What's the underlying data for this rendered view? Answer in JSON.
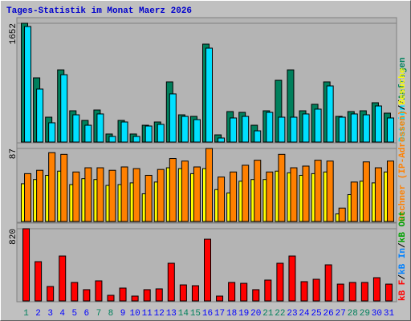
{
  "title": "Tages-Statistik im Monat Maerz 2026",
  "legend_separator": "/",
  "chart_data": [
    {
      "type": "bar",
      "ylim": [
        0,
        1652
      ],
      "yticks": [
        1652
      ],
      "series": [
        {
          "name": "Anfragen",
          "color": "#00805c",
          "values": [
            1652,
            893,
            346,
            1004,
            435,
            301,
            446,
            112,
            301,
            112,
            234,
            279,
            837,
            379,
            357,
            1362,
            100,
            424,
            413,
            234,
            435,
            859,
            1004,
            435,
            525,
            837,
            357,
            424,
            435,
            547,
            402
          ]
        },
        {
          "name": "Dateien",
          "color": "#00e0ff",
          "values": [
            1607,
            737,
            268,
            937,
            379,
            234,
            391,
            78,
            279,
            78,
            223,
            246,
            670,
            357,
            312,
            1306,
            56,
            335,
            357,
            156,
            413,
            346,
            346,
            391,
            458,
            781,
            346,
            391,
            379,
            502,
            335
          ]
        }
      ]
    },
    {
      "type": "bar",
      "ylim": [
        0,
        87
      ],
      "yticks": [
        87
      ],
      "series": [
        {
          "name": "Besuche",
          "color": "#ffff00",
          "values": [
            45,
            50,
            55,
            60,
            44,
            51,
            50,
            43,
            44,
            46,
            33,
            47,
            64,
            63,
            57,
            63,
            38,
            34,
            48,
            50,
            50,
            60,
            58,
            55,
            57,
            59,
            9,
            32,
            48,
            46,
            59
          ]
        },
        {
          "name": "Rechner (IP-Adressen)",
          "color": "#ff8000",
          "values": [
            57,
            61,
            82,
            80,
            59,
            64,
            64,
            61,
            65,
            63,
            55,
            62,
            75,
            72,
            65,
            87,
            53,
            59,
            67,
            73,
            59,
            80,
            64,
            66,
            73,
            72,
            16,
            47,
            71,
            64,
            72
          ]
        }
      ]
    },
    {
      "type": "bar",
      "ylim": [
        0,
        820
      ],
      "yticks": [
        820
      ],
      "categories": [
        "1",
        "2",
        "3",
        "4",
        "5",
        "6",
        "7",
        "8",
        "9",
        "10",
        "11",
        "12",
        "13",
        "14",
        "15",
        "16",
        "17",
        "18",
        "19",
        "20",
        "21",
        "22",
        "23",
        "24",
        "25",
        "26",
        "27",
        "28",
        "29",
        "30",
        "31"
      ],
      "category_colors": [
        "#00805c",
        "#0000ff",
        "#0000ff",
        "#0000ff",
        "#0000ff",
        "#0000ff",
        "#00805c",
        "#00805c",
        "#0000ff",
        "#0000ff",
        "#0000ff",
        "#0000ff",
        "#0000ff",
        "#00805c",
        "#00805c",
        "#0000ff",
        "#0000ff",
        "#0000ff",
        "#0000ff",
        "#0000ff",
        "#00805c",
        "#00805c",
        "#0000ff",
        "#0000ff",
        "#0000ff",
        "#0000ff",
        "#0000ff",
        "#00805c",
        "#00805c",
        "#0000ff",
        "#0000ff"
      ],
      "series": [
        {
          "name": "kB F",
          "color": "#ff0000",
          "values": [
            820,
            446,
            164,
            510,
            210,
            128,
            228,
            64,
            146,
            55,
            128,
            137,
            428,
            182,
            173,
            701,
            55,
            210,
            200,
            128,
            237,
            428,
            510,
            219,
            246,
            410,
            191,
            210,
            210,
            264,
            191
          ]
        }
      ],
      "legend_only": [
        {
          "name": "kB Out",
          "color": "#00a000"
        },
        {
          "name": "kB In",
          "color": "#0080ff"
        }
      ]
    }
  ]
}
